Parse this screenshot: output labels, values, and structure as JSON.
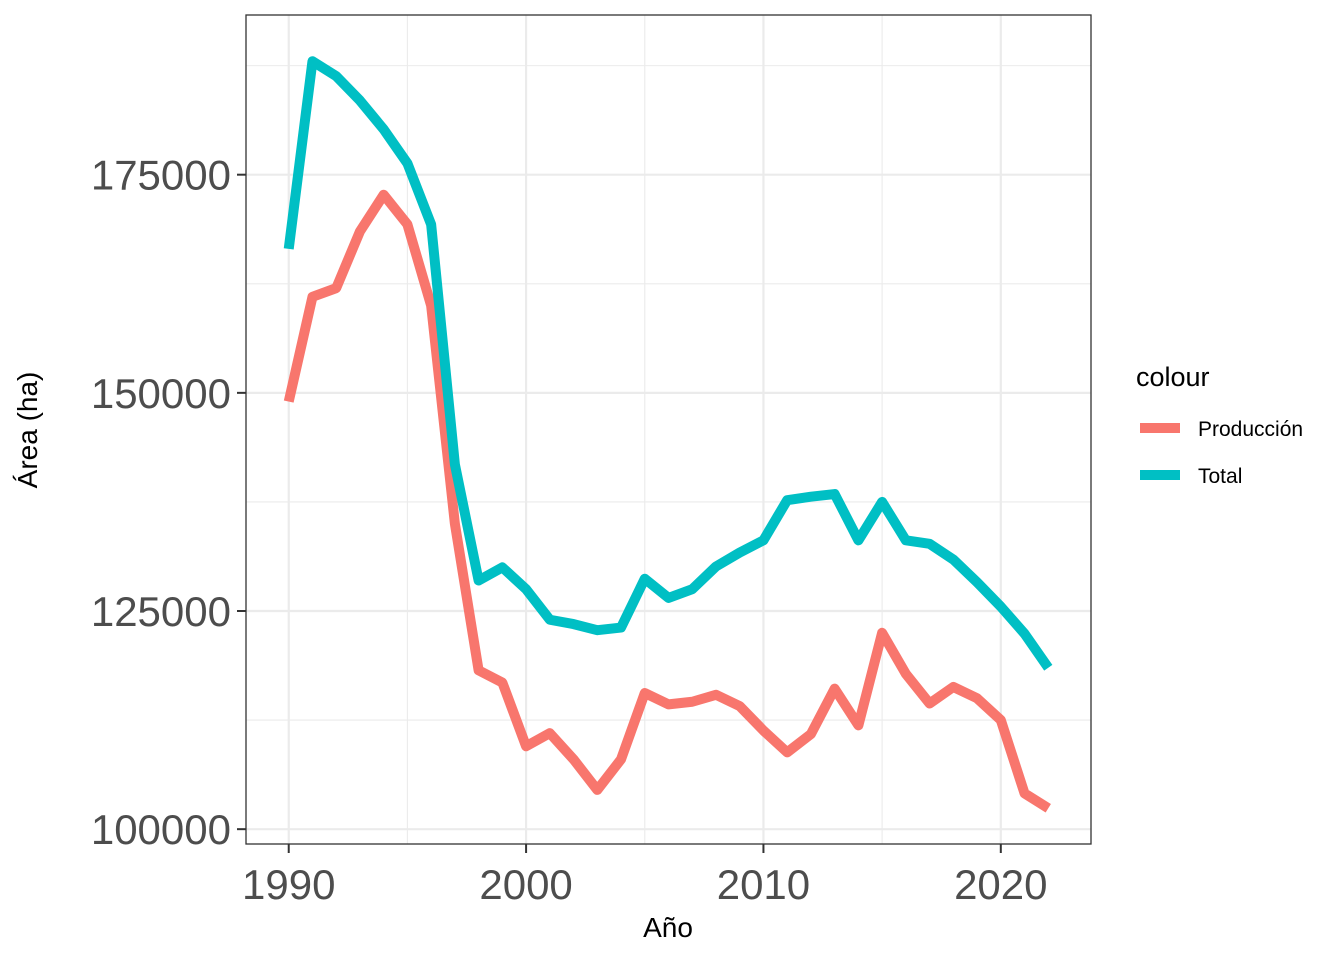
{
  "chart_data": {
    "type": "line",
    "xlabel": "Año",
    "ylabel": "Área (ha)",
    "xlim": [
      1988.2,
      2023.8
    ],
    "ylim": [
      98300,
      193300
    ],
    "x_ticks": [
      1990,
      2000,
      2010,
      2020
    ],
    "y_ticks": [
      100000,
      125000,
      150000,
      175000
    ],
    "x_tick_labels": [
      "1990",
      "2000",
      "2010",
      "2020"
    ],
    "y_tick_labels": [
      "100000",
      "125000",
      "150000",
      "175000"
    ],
    "grid": true,
    "legend": {
      "title": "colour",
      "position": "right"
    },
    "x": [
      1990,
      1991,
      1992,
      1993,
      1994,
      1995,
      1996,
      1997,
      1998,
      1999,
      2000,
      2001,
      2002,
      2003,
      2004,
      2005,
      2006,
      2007,
      2008,
      2009,
      2010,
      2011,
      2012,
      2013,
      2014,
      2015,
      2016,
      2017,
      2018,
      2019,
      2020,
      2021,
      2022
    ],
    "series": [
      {
        "name": "Producción",
        "color": "#F8766D",
        "values": [
          149000,
          161000,
          162000,
          168500,
          172700,
          169300,
          160000,
          135000,
          118200,
          116800,
          109500,
          111000,
          108000,
          104500,
          108000,
          115600,
          114300,
          114600,
          115400,
          114100,
          111300,
          108800,
          110900,
          116100,
          111900,
          122500,
          117800,
          114400,
          116300,
          115000,
          112500,
          104100,
          102400
        ]
      },
      {
        "name": "Total",
        "color": "#00BFC4",
        "values": [
          166500,
          188000,
          186300,
          183500,
          180200,
          176300,
          169300,
          141800,
          128500,
          130000,
          127500,
          124000,
          123500,
          122800,
          123100,
          128700,
          126500,
          127500,
          130100,
          131700,
          133100,
          137700,
          138100,
          138400,
          133100,
          137500,
          133100,
          132700,
          130900,
          128300,
          125500,
          122400,
          118500
        ]
      }
    ]
  }
}
